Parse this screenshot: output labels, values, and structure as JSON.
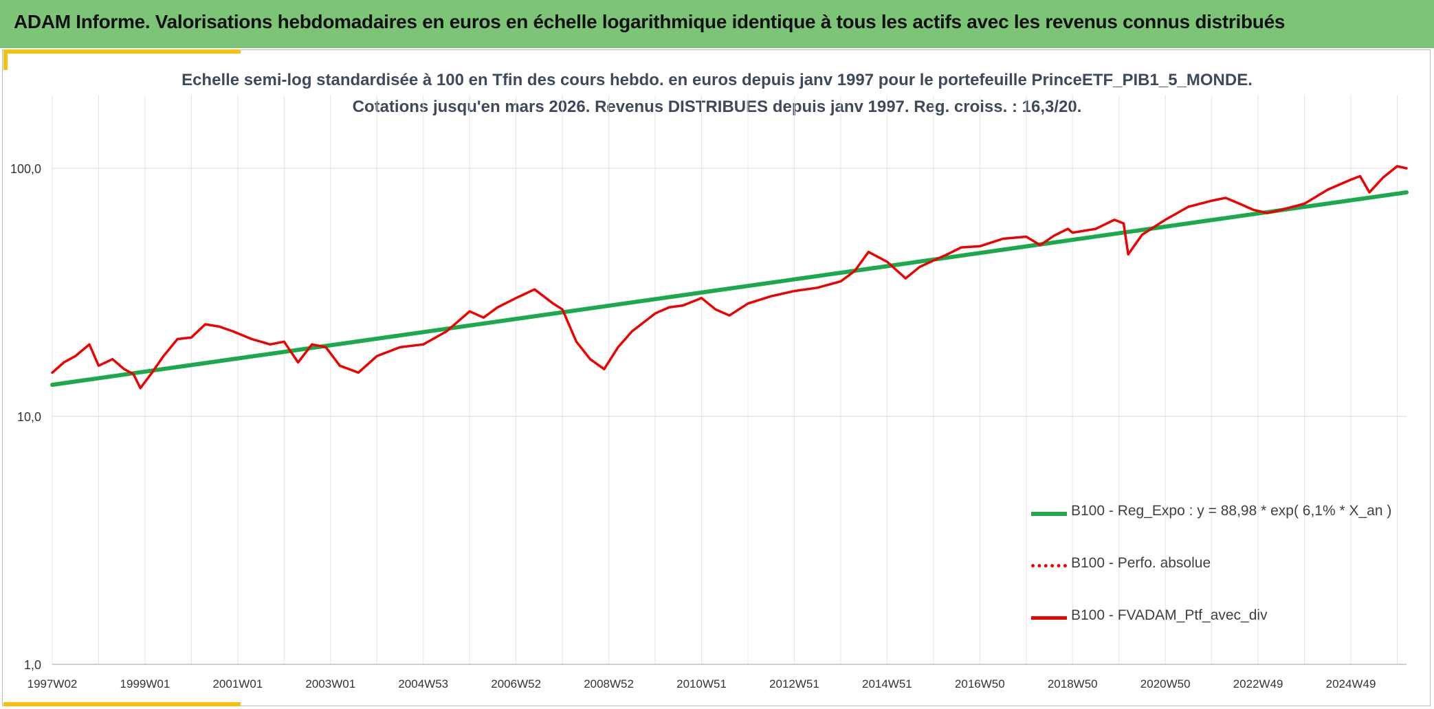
{
  "banner": {
    "title": "ADAM Informe. Valorisations hebdomadaires en euros en échelle logarithmique identique à tous les actifs avec les revenus connus distribués"
  },
  "colors": {
    "banner": "#7cc576",
    "accent": "#f4c20d",
    "regression": "#1aaa4b",
    "portfolio": "#ee0000"
  },
  "chart_data": {
    "type": "line",
    "title": "Echelle semi-log standardisée à 100 en Tfin des cours hebdo. en euros depuis janv 1997 pour le portefeuille PrinceETF_PIB1_5_MONDE.",
    "subtitle": "Cotations jusqu'en mars 2026. Revenus DISTRIBUES depuis janv 1997. Reg. croiss. : 16,3/20.",
    "y_scale": "log",
    "ylim": [
      1,
      200
    ],
    "xlim": [
      1997.0,
      2026.2
    ],
    "grid": "on",
    "legend_position": "bottom-right",
    "y_ticks": [
      {
        "value": 1,
        "label": "1,0"
      },
      {
        "value": 10,
        "label": "10,0"
      },
      {
        "value": 100,
        "label": "100,0"
      }
    ],
    "x_ticks": [
      {
        "value": 1997.0,
        "label": "1997W02"
      },
      {
        "value": 1999.0,
        "label": "1999W01"
      },
      {
        "value": 2001.0,
        "label": "2001W01"
      },
      {
        "value": 2003.0,
        "label": "2003W01"
      },
      {
        "value": 2005.0,
        "label": "2004W53"
      },
      {
        "value": 2007.0,
        "label": "2006W52"
      },
      {
        "value": 2009.0,
        "label": "2008W52"
      },
      {
        "value": 2011.0,
        "label": "2010W51"
      },
      {
        "value": 2013.0,
        "label": "2012W51"
      },
      {
        "value": 2015.0,
        "label": "2014W51"
      },
      {
        "value": 2017.0,
        "label": "2016W50"
      },
      {
        "value": 2019.0,
        "label": "2018W50"
      },
      {
        "value": 2021.0,
        "label": "2020W50"
      },
      {
        "value": 2023.0,
        "label": "2022W49"
      },
      {
        "value": 2025.0,
        "label": "2024W49"
      }
    ],
    "series": [
      {
        "name": "B100 - Reg_Expo : y = 88,98 * exp( 6,1% *  X_an )",
        "style": "solid-thick",
        "color": "#1aaa4b",
        "x": [
          1997.0,
          2026.2
        ],
        "y": [
          13.4,
          80.0
        ]
      },
      {
        "name": "B100 - Perfo. absolue",
        "style": "dotted",
        "color": "#ee0000",
        "x": [],
        "y": []
      },
      {
        "name": "B100 - FVADAM_Ptf_avec_div",
        "style": "solid",
        "color": "#ee0000",
        "x": [
          1997.0,
          1997.25,
          1997.5,
          1997.8,
          1998.0,
          1998.3,
          1998.55,
          1998.75,
          1998.9,
          1999.15,
          1999.4,
          1999.7,
          2000.0,
          2000.3,
          2000.6,
          2000.9,
          2001.3,
          2001.7,
          2002.0,
          2002.3,
          2002.6,
          2002.9,
          2003.2,
          2003.6,
          2004.0,
          2004.5,
          2005.0,
          2005.5,
          2006.0,
          2006.3,
          2006.6,
          2007.0,
          2007.4,
          2007.8,
          2008.0,
          2008.3,
          2008.6,
          2008.9,
          2009.2,
          2009.5,
          2010.0,
          2010.3,
          2010.6,
          2011.0,
          2011.3,
          2011.6,
          2012.0,
          2012.5,
          2013.0,
          2013.5,
          2014.0,
          2014.3,
          2014.6,
          2015.0,
          2015.4,
          2015.7,
          2016.0,
          2016.3,
          2016.6,
          2017.0,
          2017.5,
          2018.0,
          2018.3,
          2018.6,
          2018.9,
          2019.0,
          2019.5,
          2019.9,
          2020.1,
          2020.2,
          2020.5,
          2021.0,
          2021.5,
          2022.0,
          2022.3,
          2022.6,
          2022.9,
          2023.2,
          2023.5,
          2024.0,
          2024.5,
          2025.0,
          2025.2,
          2025.4,
          2025.7,
          2026.0,
          2026.2
        ],
        "y": [
          15.0,
          16.5,
          17.5,
          19.5,
          16.0,
          17.0,
          15.5,
          14.8,
          13.0,
          15.0,
          17.5,
          20.5,
          20.8,
          23.5,
          23.0,
          22.0,
          20.5,
          19.5,
          20.0,
          16.5,
          19.5,
          19.0,
          16.0,
          15.0,
          17.5,
          19.0,
          19.5,
          22.0,
          26.5,
          25.0,
          27.5,
          30.0,
          32.5,
          28.5,
          27.0,
          20.0,
          17.0,
          15.5,
          19.0,
          22.0,
          26.0,
          27.5,
          28.0,
          30.0,
          27.0,
          25.5,
          28.5,
          30.5,
          32.0,
          33.0,
          35.0,
          38.5,
          46.0,
          42.0,
          36.0,
          40.0,
          42.5,
          45.0,
          48.0,
          48.5,
          52.0,
          53.0,
          49.0,
          53.5,
          57.0,
          55.0,
          57.0,
          62.0,
          60.0,
          45.0,
          54.0,
          62.0,
          70.0,
          74.0,
          76.0,
          72.0,
          68.0,
          66.0,
          68.0,
          72.0,
          82.0,
          90.0,
          93.0,
          80.0,
          92.0,
          102.0,
          100.0
        ]
      }
    ]
  }
}
